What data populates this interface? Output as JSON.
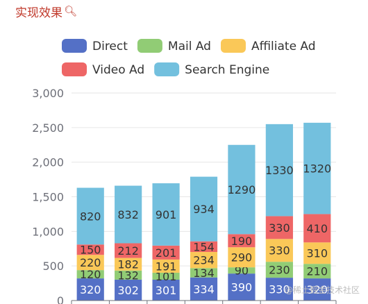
{
  "page": {
    "heading": "实现效果",
    "heading_icon": "search-icon",
    "watermark": "@稀土掘金技术社区"
  },
  "chart_data": {
    "type": "bar",
    "stacked": true,
    "categories": [
      "",
      "",
      "",
      "",
      "",
      "",
      ""
    ],
    "series": [
      {
        "name": "Direct",
        "color": "#5470c6",
        "values": [
          320,
          302,
          301,
          334,
          390,
          330,
          320
        ]
      },
      {
        "name": "Mail Ad",
        "color": "#91cc75",
        "values": [
          120,
          132,
          101,
          134,
          90,
          230,
          210
        ]
      },
      {
        "name": "Affiliate Ad",
        "color": "#fac858",
        "values": [
          220,
          182,
          191,
          234,
          290,
          330,
          310
        ]
      },
      {
        "name": "Video Ad",
        "color": "#ee6666",
        "values": [
          150,
          212,
          201,
          154,
          190,
          330,
          410
        ]
      },
      {
        "name": "Search Engine",
        "color": "#73c0de",
        "values": [
          820,
          832,
          901,
          934,
          1290,
          1330,
          1320
        ]
      }
    ],
    "ylim": [
      0,
      3000
    ],
    "yticks": [
      0,
      500,
      1000,
      1500,
      2000,
      2500,
      3000
    ],
    "ytick_labels": [
      "0",
      "500",
      "1,000",
      "1,500",
      "2,000",
      "2,500",
      "3,000"
    ],
    "grid": true,
    "legend_position": "top",
    "data_labels": true
  }
}
